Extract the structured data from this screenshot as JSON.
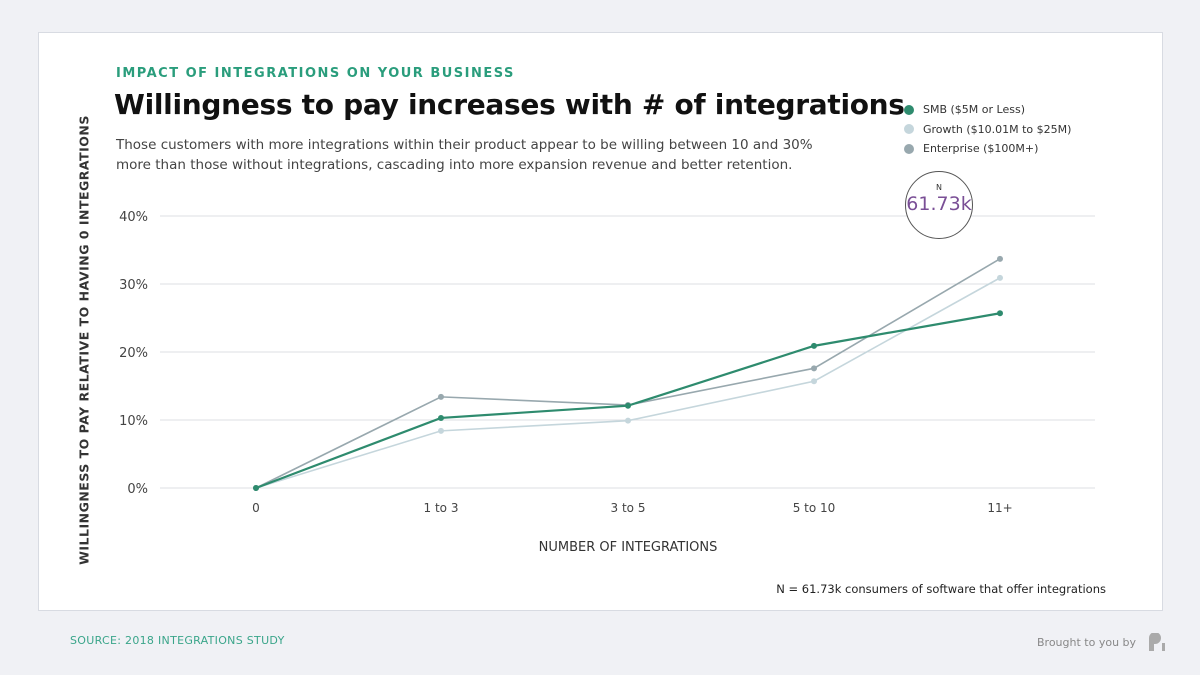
{
  "header": {
    "eyebrow": "IMPACT OF INTEGRATIONS ON YOUR BUSINESS",
    "title": "Willingness to pay increases with # of integrations",
    "subtitle": "Those customers with more integrations within their product appear to be willing between 10 and 30% more than those without integrations, cascading into more expansion revenue and better retention."
  },
  "badge": {
    "label": "N",
    "value": "61.73k"
  },
  "note": "N = 61.73k consumers of software that offer integrations",
  "footer": {
    "source": "SOURCE: 2018 INTEGRATIONS STUDY",
    "brought": "Brought to you by"
  },
  "chart_data": {
    "type": "line",
    "xlabel": "NUMBER OF INTEGRATIONS",
    "ylabel": "WILLINGNESS TO PAY RELATIVE TO HAVING 0 INTEGRATIONS",
    "categories": [
      "0",
      "1 to 3",
      "3 to 5",
      "5 to 10",
      "11+"
    ],
    "yticks": [
      "0%",
      "10%",
      "20%",
      "30%",
      "40%"
    ],
    "ylim": [
      0,
      40
    ],
    "grid": true,
    "legend": "top-right",
    "series": [
      {
        "name": "SMB ($5M or Less)",
        "color": "#2e8b6e",
        "values": [
          0,
          10.3,
          12.1,
          20.9,
          25.7
        ]
      },
      {
        "name": "Growth ($10.01M to $25M)",
        "color": "#c5d6dc",
        "values": [
          0,
          8.4,
          9.9,
          15.7,
          30.9
        ]
      },
      {
        "name": "Enterprise ($100M+)",
        "color": "#98a8ae",
        "values": [
          0,
          13.4,
          12.2,
          17.6,
          33.7
        ]
      }
    ]
  }
}
